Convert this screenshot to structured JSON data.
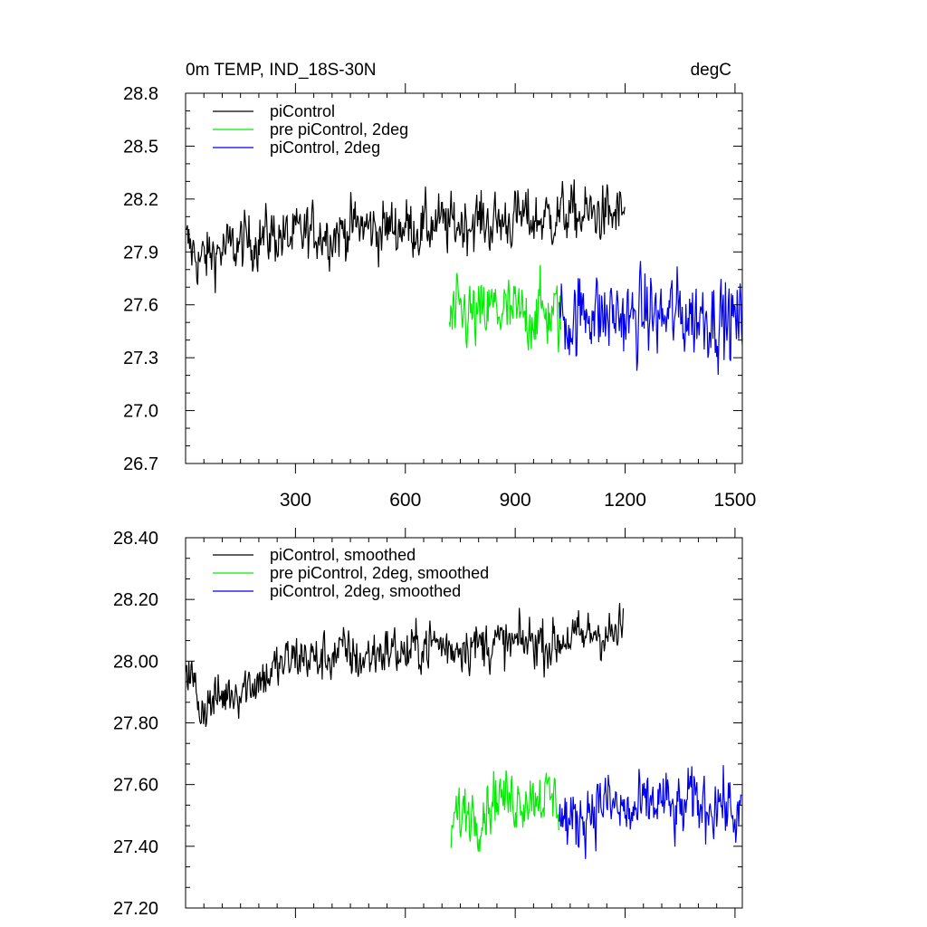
{
  "chart_data": [
    {
      "type": "line",
      "title_left": "0m TEMP, IND_18S-30N",
      "title_right": "degC",
      "xlim": [
        0,
        1520
      ],
      "ylim": [
        26.7,
        28.8
      ],
      "x_ticks": [
        300,
        600,
        900,
        1200,
        1500
      ],
      "x_tick_labels": [
        "300",
        "600",
        "900",
        "1200",
        "1500"
      ],
      "y_ticks": [
        26.7,
        27.0,
        27.3,
        27.6,
        27.9,
        28.2,
        28.5,
        28.8
      ],
      "y_tick_labels": [
        "26.7",
        "27.0",
        "27.3",
        "27.6",
        "27.9",
        "28.2",
        "28.5",
        "28.8"
      ],
      "grid": false,
      "legend": "top-left",
      "series": [
        {
          "name": "piControl",
          "color": "#000000",
          "x_start": 1,
          "x_end": 1200,
          "step": 40,
          "values": [
            27.95,
            27.85,
            27.9,
            27.92,
            27.95,
            27.98,
            28.0,
            27.97,
            28.0,
            28.02,
            28.0,
            28.03,
            28.05,
            28.02,
            28.04,
            28.05,
            28.03,
            28.06,
            28.05,
            28.07,
            28.08,
            28.06,
            28.08,
            28.1,
            28.08,
            28.1,
            28.12,
            28.1,
            28.12,
            28.1,
            28.13
          ],
          "noise": 0.14
        },
        {
          "name": "pre piControl, 2deg",
          "color": "#00ee00",
          "x_start": 720,
          "x_end": 1025,
          "step": 40,
          "values": [
            27.5,
            27.55,
            27.52,
            27.58,
            27.55,
            27.53,
            27.56,
            27.55,
            27.5
          ],
          "noise": 0.17
        },
        {
          "name": "piControl, 2deg",
          "color": "#0000ee",
          "x_start": 1020,
          "x_end": 1520,
          "step": 40,
          "values": [
            27.55,
            27.5,
            27.6,
            27.52,
            27.55,
            27.5,
            27.56,
            27.52,
            27.55,
            27.53,
            27.55,
            27.52,
            27.5,
            27.48
          ],
          "noise": 0.2
        }
      ]
    },
    {
      "type": "line",
      "xlim": [
        0,
        1520
      ],
      "ylim": [
        27.2,
        28.4
      ],
      "x_ticks": [
        300,
        600,
        900,
        1200,
        1500
      ],
      "y_ticks": [
        27.2,
        27.4,
        27.6,
        27.8,
        28.0,
        28.2,
        28.4
      ],
      "y_tick_labels": [
        "27.20",
        "27.40",
        "27.60",
        "27.80",
        "28.00",
        "28.20",
        "28.40"
      ],
      "grid": false,
      "legend": "top-left",
      "series": [
        {
          "name": "piControl, smoothed",
          "color": "#000000",
          "x_start": 1,
          "x_end": 1195,
          "step": 40,
          "values": [
            28.0,
            27.85,
            27.87,
            27.9,
            27.92,
            27.94,
            27.97,
            28.0,
            28.02,
            28.0,
            28.02,
            28.03,
            28.0,
            28.03,
            28.04,
            28.02,
            28.05,
            28.06,
            28.04,
            28.06,
            28.05,
            28.06,
            28.05,
            28.06,
            28.07,
            28.05,
            28.08,
            28.07,
            28.1,
            28.08,
            28.1
          ],
          "noise": 0.07
        },
        {
          "name": "pre piControl, 2deg, smoothed",
          "color": "#00ee00",
          "x_start": 725,
          "x_end": 1020,
          "step": 40,
          "values": [
            27.47,
            27.52,
            27.5,
            27.57,
            27.55,
            27.56,
            27.57,
            27.55,
            27.52
          ],
          "noise": 0.08
        },
        {
          "name": "piControl, 2deg, smoothed",
          "color": "#0000ee",
          "x_start": 1020,
          "x_end": 1518,
          "step": 40,
          "values": [
            27.5,
            27.47,
            27.52,
            27.55,
            27.52,
            27.5,
            27.53,
            27.55,
            27.5,
            27.55,
            27.53,
            27.55,
            27.5,
            27.47
          ],
          "noise": 0.09
        }
      ]
    }
  ]
}
